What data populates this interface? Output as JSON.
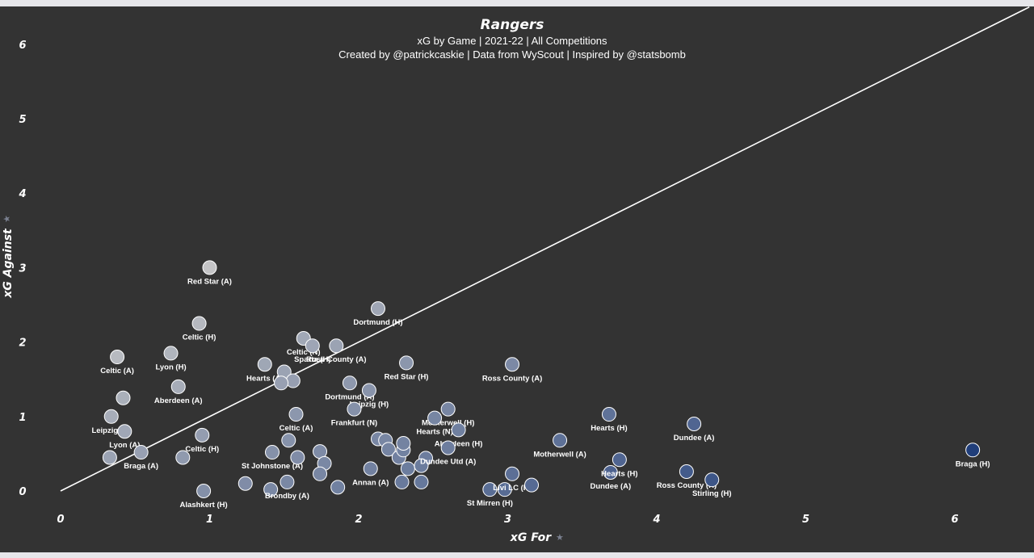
{
  "chart_data": {
    "type": "scatter",
    "title": "Rangers",
    "subtitle": "xG by Game | 2021-22 | All Competitions",
    "credit": "Created by @patrickcaskie | Data from WyScout | Inspired by @statsbomb",
    "xlabel": "xG For",
    "ylabel": "xG Against",
    "xlim": [
      0,
      6.5
    ],
    "ylim": [
      0,
      6.5
    ],
    "xticks": [
      0,
      1,
      2,
      3,
      4,
      5,
      6
    ],
    "yticks": [
      0,
      1,
      2,
      3,
      4,
      5,
      6
    ],
    "reference_line": "y = x",
    "color_scale": {
      "low": "#c8c8c8",
      "high": "#1f3d7a"
    },
    "points": [
      {
        "x": 1.0,
        "y": 3.0,
        "label": "Red Star (A)"
      },
      {
        "x": 0.93,
        "y": 2.25,
        "label": "Celtic (H)"
      },
      {
        "x": 0.38,
        "y": 1.8,
        "label": "Celtic (A)"
      },
      {
        "x": 0.74,
        "y": 1.85,
        "label": "Lyon (H)"
      },
      {
        "x": 1.37,
        "y": 1.7,
        "label": "Hearts (A)"
      },
      {
        "x": 1.63,
        "y": 2.05,
        "label": "Celtic (N)"
      },
      {
        "x": 1.69,
        "y": 1.95,
        "label": "Sparta (H)"
      },
      {
        "x": 1.85,
        "y": 1.95,
        "label": "Ross County (A)"
      },
      {
        "x": 2.13,
        "y": 2.45,
        "label": "Dortmund (H)"
      },
      {
        "x": 0.79,
        "y": 1.4,
        "label": "Aberdeen (A)"
      },
      {
        "x": 0.42,
        "y": 1.25,
        "label": ""
      },
      {
        "x": 0.34,
        "y": 1.0,
        "label": "Leipzig (A)"
      },
      {
        "x": 0.43,
        "y": 0.8,
        "label": "Lyon (A)"
      },
      {
        "x": 1.5,
        "y": 1.6,
        "label": ""
      },
      {
        "x": 1.56,
        "y": 1.48,
        "label": ""
      },
      {
        "x": 1.48,
        "y": 1.45,
        "label": ""
      },
      {
        "x": 1.94,
        "y": 1.45,
        "label": "Dortmund (A)"
      },
      {
        "x": 2.32,
        "y": 1.72,
        "label": "Red Star (H)"
      },
      {
        "x": 2.07,
        "y": 1.35,
        "label": "Leipzig (H)"
      },
      {
        "x": 3.03,
        "y": 1.7,
        "label": "Ross County (A)"
      },
      {
        "x": 1.97,
        "y": 1.1,
        "label": "Frankfurt (N)"
      },
      {
        "x": 2.6,
        "y": 1.1,
        "label": "Motherwell (H)"
      },
      {
        "x": 2.51,
        "y": 0.98,
        "label": "Hearts (N)"
      },
      {
        "x": 2.67,
        "y": 0.82,
        "label": "Aberdeen (H)"
      },
      {
        "x": 1.58,
        "y": 1.03,
        "label": "Celtic (A)"
      },
      {
        "x": 1.53,
        "y": 0.68,
        "label": ""
      },
      {
        "x": 0.95,
        "y": 0.75,
        "label": "Celtic (H)"
      },
      {
        "x": 1.42,
        "y": 0.52,
        "label": "St Johnstone (A)"
      },
      {
        "x": 1.59,
        "y": 0.45,
        "label": ""
      },
      {
        "x": 1.74,
        "y": 0.53,
        "label": ""
      },
      {
        "x": 1.77,
        "y": 0.37,
        "label": ""
      },
      {
        "x": 0.33,
        "y": 0.45,
        "label": ""
      },
      {
        "x": 0.54,
        "y": 0.52,
        "label": "Braga (A)"
      },
      {
        "x": 0.82,
        "y": 0.45,
        "label": ""
      },
      {
        "x": 0.96,
        "y": 0.0,
        "label": "Alashkert (H)"
      },
      {
        "x": 1.24,
        "y": 0.1,
        "label": ""
      },
      {
        "x": 1.41,
        "y": 0.02,
        "label": ""
      },
      {
        "x": 1.52,
        "y": 0.12,
        "label": "Brondby (A)"
      },
      {
        "x": 1.74,
        "y": 0.23,
        "label": ""
      },
      {
        "x": 1.86,
        "y": 0.05,
        "label": ""
      },
      {
        "x": 2.08,
        "y": 0.3,
        "label": "Annan (A)"
      },
      {
        "x": 2.13,
        "y": 0.7,
        "label": ""
      },
      {
        "x": 2.18,
        "y": 0.68,
        "label": ""
      },
      {
        "x": 2.2,
        "y": 0.56,
        "label": ""
      },
      {
        "x": 2.27,
        "y": 0.45,
        "label": ""
      },
      {
        "x": 2.3,
        "y": 0.55,
        "label": ""
      },
      {
        "x": 2.3,
        "y": 0.64,
        "label": ""
      },
      {
        "x": 2.45,
        "y": 0.44,
        "label": ""
      },
      {
        "x": 2.33,
        "y": 0.3,
        "label": ""
      },
      {
        "x": 2.42,
        "y": 0.34,
        "label": ""
      },
      {
        "x": 2.29,
        "y": 0.12,
        "label": ""
      },
      {
        "x": 2.42,
        "y": 0.12,
        "label": ""
      },
      {
        "x": 2.6,
        "y": 0.58,
        "label": "Dundee Utd (A)"
      },
      {
        "x": 2.88,
        "y": 0.02,
        "label": "St Mirren (H)"
      },
      {
        "x": 2.98,
        "y": 0.02,
        "label": ""
      },
      {
        "x": 3.03,
        "y": 0.23,
        "label": "Livi LC (H)"
      },
      {
        "x": 3.16,
        "y": 0.08,
        "label": ""
      },
      {
        "x": 3.35,
        "y": 0.68,
        "label": "Motherwell (A)"
      },
      {
        "x": 3.68,
        "y": 1.03,
        "label": "Hearts (H)"
      },
      {
        "x": 3.69,
        "y": 0.25,
        "label": "Dundee (A)"
      },
      {
        "x": 3.75,
        "y": 0.42,
        "label": "Hearts (H)"
      },
      {
        "x": 4.25,
        "y": 0.9,
        "label": "Dundee (A)"
      },
      {
        "x": 4.2,
        "y": 0.26,
        "label": "Ross County (H)"
      },
      {
        "x": 4.37,
        "y": 0.15,
        "label": "Stirling (H)"
      },
      {
        "x": 6.12,
        "y": 0.55,
        "label": "Braga (H)"
      }
    ]
  }
}
